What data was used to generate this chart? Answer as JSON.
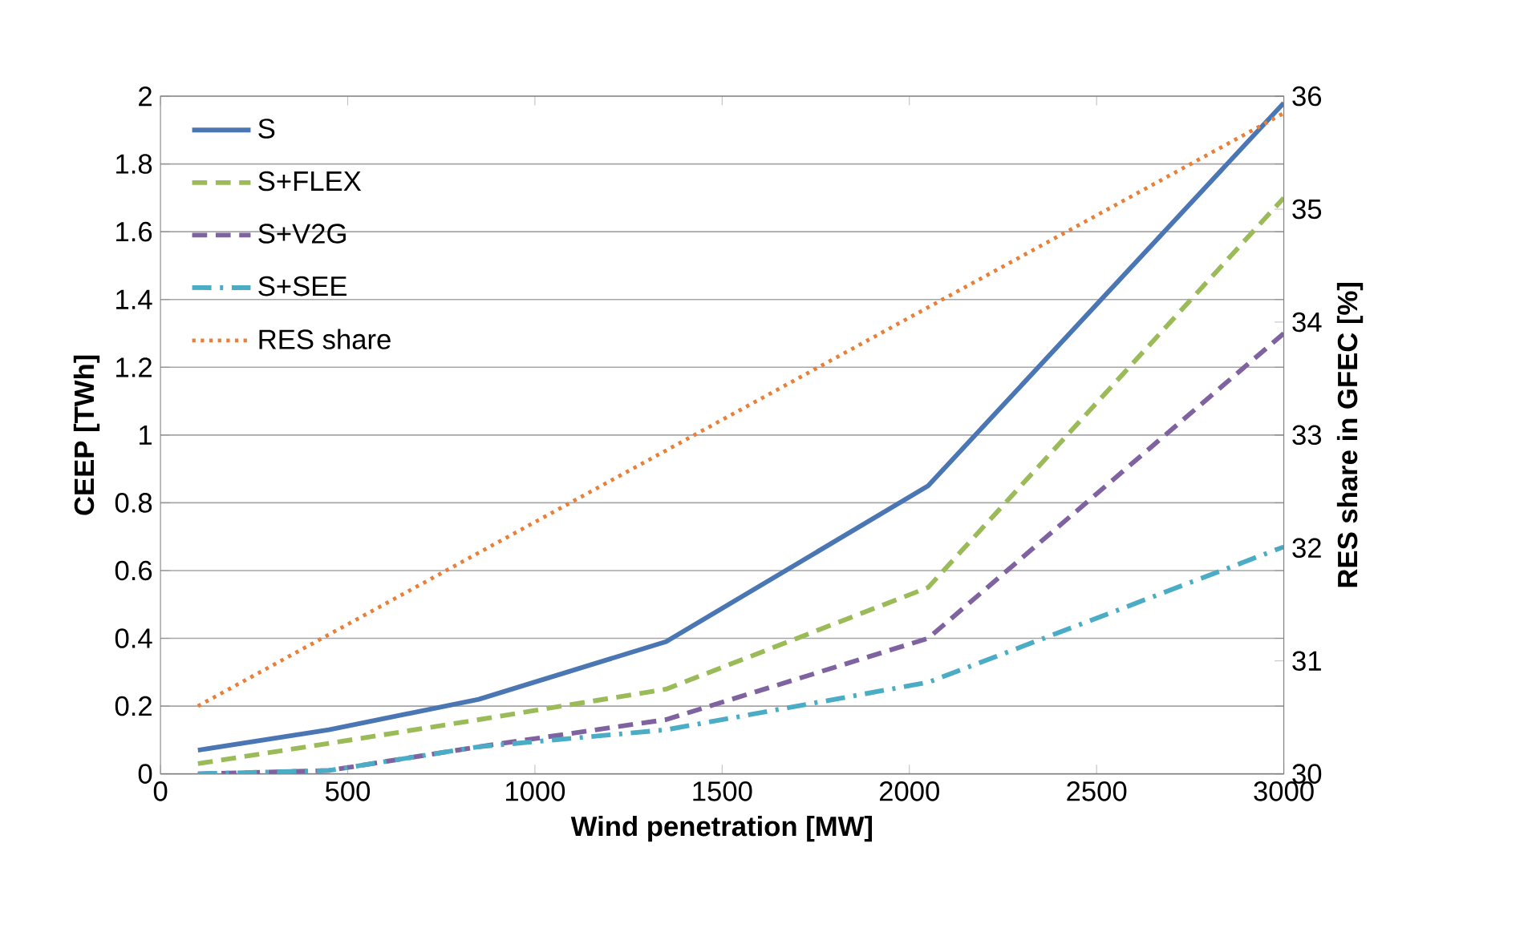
{
  "chart_data": {
    "type": "line",
    "xlabel": "Wind penetration [MW]",
    "ylabel": "CEEP [TWh]",
    "y2label": "RES share in GFEC [%]",
    "x": [
      100,
      450,
      850,
      1350,
      2050,
      3000
    ],
    "series": [
      {
        "name": "S",
        "color": "#4a76b4",
        "line_style": "solid",
        "values": [
          0.07,
          0.13,
          0.22,
          0.39,
          0.85,
          1.98
        ]
      },
      {
        "name": "S+FLEX",
        "color": "#9bbb59",
        "line_style": "dashed",
        "values": [
          0.03,
          0.09,
          0.16,
          0.25,
          0.55,
          1.7
        ]
      },
      {
        "name": "S+V2G",
        "color": "#7f62a0",
        "line_style": "dashed",
        "values": [
          0.0,
          0.01,
          0.08,
          0.16,
          0.4,
          1.3
        ]
      },
      {
        "name": "S+SEE",
        "color": "#4bacc6",
        "line_style": "dashdot",
        "values": [
          0.0,
          0.01,
          0.08,
          0.13,
          0.27,
          0.67
        ]
      },
      {
        "name": "RES share",
        "color": "#e8803a",
        "line_style": "dotted",
        "axis": "y2",
        "x": [
          100,
          3000
        ],
        "values": [
          30.6,
          35.85
        ]
      }
    ],
    "xlim": [
      0,
      3000
    ],
    "xticks": [
      0,
      500,
      1000,
      1500,
      2000,
      2500,
      3000
    ],
    "ylim": [
      0,
      2
    ],
    "yticks": [
      0,
      0.2,
      0.4,
      0.6,
      0.8,
      1,
      1.2,
      1.4,
      1.6,
      1.8,
      2
    ],
    "y2lim": [
      30,
      36
    ],
    "y2ticks": [
      30,
      31,
      32,
      33,
      34,
      35,
      36
    ],
    "grid": "y",
    "legend": "top left",
    "marker": "none"
  }
}
